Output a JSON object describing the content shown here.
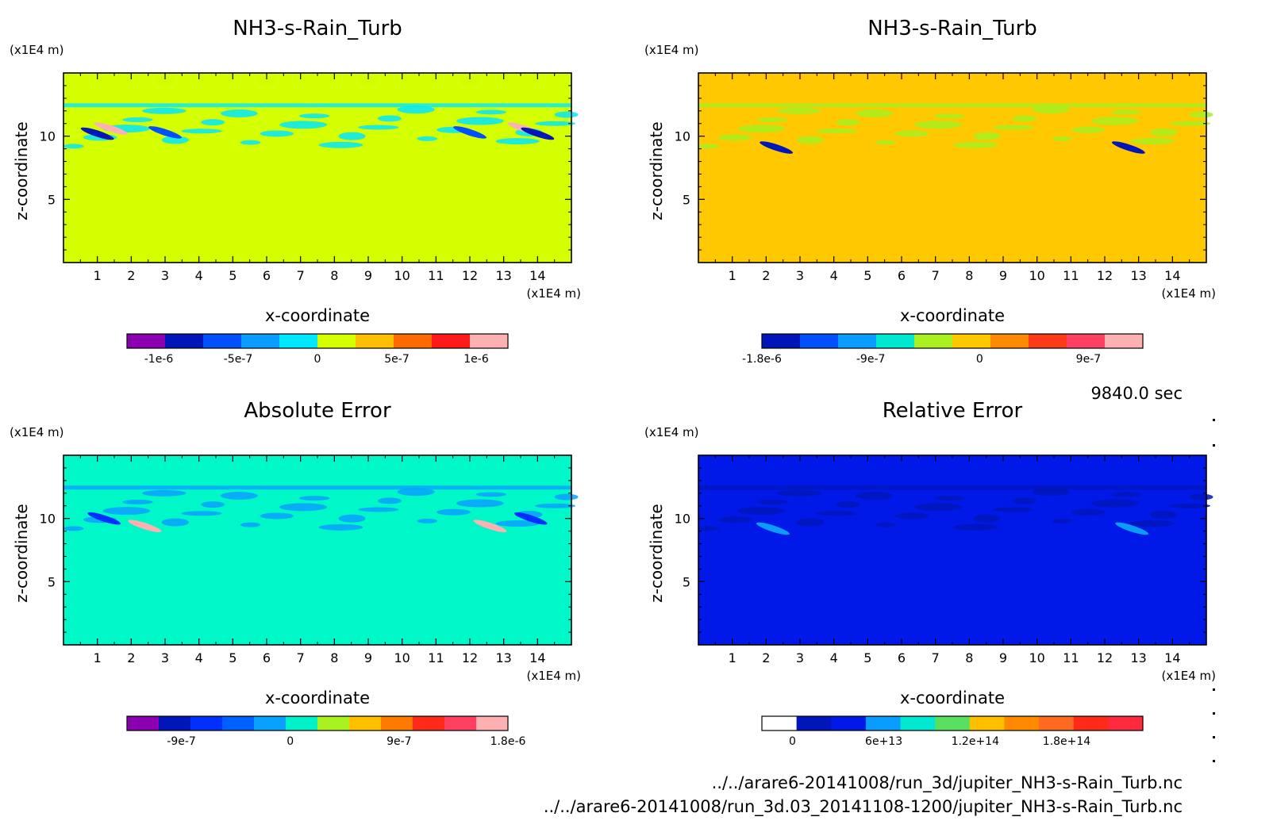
{
  "chart_data": [
    {
      "type": "heatmap",
      "title": "NH3-s-Rain_Turb",
      "xlabel": "x-coordinate",
      "ylabel": "z-coordinate",
      "x_unit": "(x1E4 m)",
      "y_unit": "(x1E4 m)",
      "xlim": [
        0,
        15
      ],
      "ylim": [
        0,
        15
      ],
      "x_ticks": [
        "1",
        "2",
        "3",
        "4",
        "5",
        "6",
        "7",
        "8",
        "9",
        "10",
        "11",
        "12",
        "13",
        "14"
      ],
      "y_ticks": [
        "5",
        "10"
      ],
      "background_color": "#d4ff00",
      "colorbar": {
        "colors": [
          "#8a00b0",
          "#0016b8",
          "#0050ff",
          "#0a9cff",
          "#00e8ff",
          "#d4ff00",
          "#ffbe00",
          "#ff6a00",
          "#ff1a1a",
          "#ffb0b0"
        ],
        "tick_labels": [
          "-1e-6",
          "-5e-7",
          "0",
          "5e-7",
          "1e-6"
        ],
        "tick_values": [
          -1e-06,
          -5e-07,
          0,
          5e-07,
          1e-06
        ],
        "range": [
          -1.2e-06,
          1.2e-06
        ]
      },
      "features": [
        {
          "x": 1.0,
          "z": 10.2,
          "value": -8e-07
        },
        {
          "x": 1.4,
          "z": 10.6,
          "value": 1.1e-06
        },
        {
          "x": 3.0,
          "z": 10.3,
          "value": -6e-07
        },
        {
          "x": 12.0,
          "z": 10.3,
          "value": -6e-07
        },
        {
          "x": 13.6,
          "z": 10.6,
          "value": 1.1e-06
        },
        {
          "x": 14.0,
          "z": 10.2,
          "value": -8e-07
        }
      ]
    },
    {
      "type": "heatmap",
      "title": "NH3-s-Rain_Turb",
      "xlabel": "x-coordinate",
      "ylabel": "z-coordinate",
      "x_unit": "(x1E4 m)",
      "y_unit": "(x1E4 m)",
      "xlim": [
        0,
        15
      ],
      "ylim": [
        0,
        15
      ],
      "x_ticks": [
        "1",
        "2",
        "3",
        "4",
        "5",
        "6",
        "7",
        "8",
        "9",
        "10",
        "11",
        "12",
        "13",
        "14"
      ],
      "y_ticks": [
        "5",
        "10"
      ],
      "background_color": "#ffc800",
      "colorbar": {
        "colors": [
          "#0016b8",
          "#0050ff",
          "#0a9cff",
          "#00e8d0",
          "#a8f020",
          "#ffc800",
          "#ff8a00",
          "#ff3a1a",
          "#ff4060",
          "#ffb0b0"
        ],
        "tick_labels": [
          "-1.8e-6",
          "-9e-7",
          "0",
          "9e-7"
        ],
        "tick_values": [
          -1.8e-06,
          -9e-07,
          0,
          9e-07
        ],
        "range": [
          -1.8e-06,
          1.35e-06
        ]
      },
      "features": [
        {
          "x": 2.3,
          "z": 9.1,
          "value": -1.6e-06
        },
        {
          "x": 12.7,
          "z": 9.1,
          "value": -1.6e-06
        }
      ]
    },
    {
      "type": "heatmap",
      "title": "Absolute Error",
      "xlabel": "x-coordinate",
      "ylabel": "z-coordinate",
      "x_unit": "(x1E4 m)",
      "y_unit": "(x1E4 m)",
      "xlim": [
        0,
        15
      ],
      "ylim": [
        0,
        15
      ],
      "x_ticks": [
        "1",
        "2",
        "3",
        "4",
        "5",
        "6",
        "7",
        "8",
        "9",
        "10",
        "11",
        "12",
        "13",
        "14"
      ],
      "y_ticks": [
        "5",
        "10"
      ],
      "background_color": "#00f8c8",
      "colorbar": {
        "colors": [
          "#8a00b0",
          "#0016b8",
          "#0030ff",
          "#0060ff",
          "#0aa0ff",
          "#00f0c8",
          "#a8f020",
          "#ffc000",
          "#ff7a00",
          "#ff2a1a",
          "#ff4060",
          "#ffb0b0"
        ],
        "tick_labels": [
          "-9e-7",
          "0",
          "9e-7",
          "1.8e-6"
        ],
        "tick_values": [
          -9e-07,
          0,
          9e-07,
          1.8e-06
        ],
        "range": [
          -1.35e-06,
          1.8e-06
        ]
      },
      "features": [
        {
          "x": 1.2,
          "z": 10.0,
          "value": -7e-07
        },
        {
          "x": 2.4,
          "z": 9.4,
          "value": 1.6e-06
        },
        {
          "x": 12.6,
          "z": 9.4,
          "value": 1.6e-06
        },
        {
          "x": 13.8,
          "z": 10.0,
          "value": -7e-07
        }
      ]
    },
    {
      "type": "heatmap",
      "title": "Relative Error",
      "xlabel": "x-coordinate",
      "ylabel": "z-coordinate",
      "x_unit": "(x1E4 m)",
      "y_unit": "(x1E4 m)",
      "xlim": [
        0,
        15
      ],
      "ylim": [
        0,
        15
      ],
      "x_ticks": [
        "1",
        "2",
        "3",
        "4",
        "5",
        "6",
        "7",
        "8",
        "9",
        "10",
        "11",
        "12",
        "13",
        "14"
      ],
      "y_ticks": [
        "5",
        "10"
      ],
      "background_color": "#0018e8",
      "colorbar": {
        "colors": [
          "#ffffff",
          "#0016b8",
          "#0018e8",
          "#0a9cff",
          "#00e8d0",
          "#5ae060",
          "#ffc000",
          "#ff8a00",
          "#ff6a20",
          "#ff2a1a",
          "#ff2a40"
        ],
        "tick_labels": [
          "0",
          "6e+13",
          "1.2e+14",
          "1.8e+14"
        ],
        "tick_values": [
          0,
          60000000000000.0,
          120000000000000.0,
          180000000000000.0
        ],
        "range": [
          -20000000000000.0,
          230000000000000.0
        ]
      },
      "features": [
        {
          "x": 2.2,
          "z": 9.2,
          "value": 60000000000000.0
        },
        {
          "x": 12.8,
          "z": 9.2,
          "value": 60000000000000.0
        }
      ]
    }
  ],
  "time_label": "9840.0 sec",
  "footer": {
    "file_1": "../../arare6-20141008/run_3d/jupiter_NH3-s-Rain_Turb.nc",
    "file_2": "../../arare6-20141008/run_3d.03_20141108-1200/jupiter_NH3-s-Rain_Turb.nc"
  }
}
